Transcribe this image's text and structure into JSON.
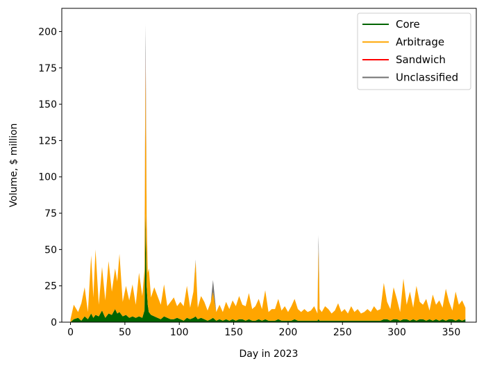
{
  "chart_data": {
    "type": "area",
    "stacked": true,
    "title": "",
    "xlabel": "Day in 2023",
    "ylabel": "Volume, $ million",
    "xlim": [
      -8,
      373
    ],
    "ylim": [
      0,
      216
    ],
    "x_ticks": [
      0,
      50,
      100,
      150,
      200,
      250,
      300,
      350
    ],
    "y_ticks": [
      0,
      25,
      50,
      75,
      100,
      125,
      150,
      175,
      200
    ],
    "grid": false,
    "legend_position": "top-right",
    "x": [
      0,
      3,
      7,
      10,
      13,
      16,
      19,
      21,
      23,
      26,
      29,
      32,
      35,
      38,
      41,
      43,
      45,
      48,
      51,
      54,
      57,
      60,
      63,
      66,
      68,
      69,
      70,
      71,
      72,
      74,
      77,
      80,
      83,
      86,
      89,
      92,
      95,
      98,
      101,
      104,
      107,
      110,
      113,
      115,
      117,
      120,
      123,
      126,
      129,
      131,
      134,
      137,
      140,
      143,
      146,
      149,
      152,
      155,
      158,
      161,
      164,
      167,
      170,
      173,
      176,
      179,
      182,
      185,
      188,
      191,
      194,
      197,
      200,
      203,
      206,
      209,
      212,
      215,
      218,
      221,
      224,
      227,
      228,
      229,
      231,
      234,
      237,
      240,
      243,
      246,
      249,
      252,
      255,
      258,
      261,
      264,
      267,
      270,
      273,
      276,
      279,
      282,
      285,
      288,
      291,
      294,
      297,
      300,
      303,
      306,
      309,
      312,
      315,
      318,
      321,
      324,
      327,
      330,
      333,
      336,
      339,
      342,
      345,
      348,
      351,
      354,
      357,
      360,
      363
    ],
    "series": [
      {
        "name": "Core",
        "color": "#006400",
        "values": [
          0,
          2,
          3,
          1,
          4,
          2,
          6,
          3,
          5,
          4,
          8,
          3,
          6,
          5,
          9,
          6,
          7,
          4,
          5,
          3,
          4,
          3,
          4,
          3,
          8,
          75,
          25,
          12,
          7,
          5,
          4,
          3,
          2,
          4,
          3,
          2,
          2,
          3,
          2,
          1,
          3,
          2,
          3,
          4,
          2,
          3,
          2,
          1,
          2,
          3,
          1,
          2,
          1,
          2,
          1,
          2,
          1,
          2,
          2,
          1,
          2,
          1,
          1,
          2,
          1,
          2,
          1,
          1,
          1,
          2,
          1,
          1,
          1,
          1,
          2,
          1,
          1,
          1,
          1,
          1,
          1,
          1,
          2,
          1,
          1,
          1,
          1,
          1,
          1,
          1,
          1,
          1,
          1,
          1,
          1,
          1,
          1,
          1,
          1,
          1,
          1,
          1,
          1,
          2,
          2,
          1,
          2,
          2,
          1,
          2,
          2,
          1,
          2,
          1,
          2,
          2,
          1,
          2,
          1,
          2,
          1,
          2,
          1,
          2,
          2,
          1,
          2,
          1,
          2
        ]
      },
      {
        "name": "Arbitrage",
        "color": "#FFA500",
        "values": [
          2,
          10,
          4,
          12,
          20,
          5,
          40,
          14,
          45,
          8,
          30,
          12,
          36,
          16,
          28,
          22,
          40,
          10,
          20,
          12,
          22,
          9,
          30,
          15,
          28,
          105,
          45,
          22,
          30,
          12,
          20,
          15,
          10,
          22,
          8,
          12,
          15,
          8,
          12,
          10,
          22,
          8,
          18,
          38,
          8,
          15,
          12,
          7,
          12,
          18,
          6,
          10,
          6,
          12,
          8,
          13,
          10,
          16,
          10,
          10,
          18,
          8,
          10,
          14,
          8,
          20,
          6,
          8,
          8,
          14,
          7,
          10,
          6,
          10,
          14,
          8,
          6,
          8,
          6,
          7,
          10,
          5,
          50,
          8,
          6,
          10,
          8,
          5,
          7,
          12,
          6,
          8,
          5,
          10,
          6,
          8,
          5,
          6,
          8,
          6,
          10,
          7,
          8,
          25,
          12,
          8,
          22,
          14,
          6,
          28,
          10,
          20,
          8,
          24,
          12,
          10,
          15,
          6,
          18,
          10,
          14,
          8,
          22,
          12,
          6,
          20,
          10,
          14,
          8
        ]
      },
      {
        "name": "Sandwich",
        "color": "#FF0000",
        "values": [
          0,
          0,
          0,
          0,
          0,
          0,
          0,
          0,
          0,
          0,
          0,
          0,
          0,
          0,
          0,
          0,
          0,
          0,
          0,
          0,
          0,
          0,
          0,
          0,
          0,
          5,
          1,
          0,
          0,
          0,
          0,
          0,
          0,
          0,
          0,
          0,
          0,
          0,
          0,
          0,
          0,
          0,
          0,
          0,
          0,
          0,
          0,
          0,
          0,
          0,
          0,
          0,
          0,
          0,
          0,
          0,
          0,
          0,
          0,
          0,
          0,
          0,
          0,
          0,
          0,
          0,
          0,
          0,
          0,
          0,
          0,
          0,
          0,
          0,
          0,
          0,
          0,
          0,
          0,
          0,
          0,
          0,
          0,
          0,
          0,
          0,
          0,
          0,
          0,
          0,
          0,
          0,
          0,
          0,
          0,
          0,
          0,
          0,
          0,
          0,
          0,
          0,
          0,
          0,
          0,
          0,
          0,
          0,
          0,
          0,
          0,
          0,
          0,
          0,
          0,
          0,
          0,
          0,
          0,
          0,
          0,
          0,
          0,
          0,
          0,
          0,
          0,
          0,
          0
        ]
      },
      {
        "name": "Unclassified",
        "color": "#707070",
        "values": [
          0,
          0,
          0,
          0,
          0,
          0,
          0,
          0,
          0,
          0,
          0,
          0,
          0,
          0,
          0,
          0,
          0,
          0,
          0,
          0,
          0,
          0,
          0,
          0,
          0,
          20,
          2,
          0,
          0,
          0,
          0,
          0,
          0,
          0,
          0,
          0,
          0,
          0,
          0,
          0,
          0,
          0,
          0,
          1,
          0,
          0,
          0,
          0,
          0,
          8,
          0,
          0,
          0,
          0,
          0,
          0,
          0,
          0,
          0,
          0,
          0,
          0,
          0,
          0,
          0,
          0,
          0,
          0,
          0,
          0,
          0,
          0,
          0,
          0,
          0,
          0,
          0,
          0,
          0,
          0,
          0,
          0,
          8,
          0,
          0,
          0,
          0,
          0,
          0,
          0,
          0,
          0,
          0,
          0,
          0,
          0,
          0,
          0,
          0,
          0,
          0,
          0,
          0,
          0,
          0,
          0,
          0,
          0,
          0,
          0,
          0,
          0,
          0,
          0,
          0,
          0,
          0,
          0,
          0,
          0,
          0,
          0,
          0,
          0,
          0,
          0,
          0,
          0,
          0
        ]
      }
    ]
  }
}
